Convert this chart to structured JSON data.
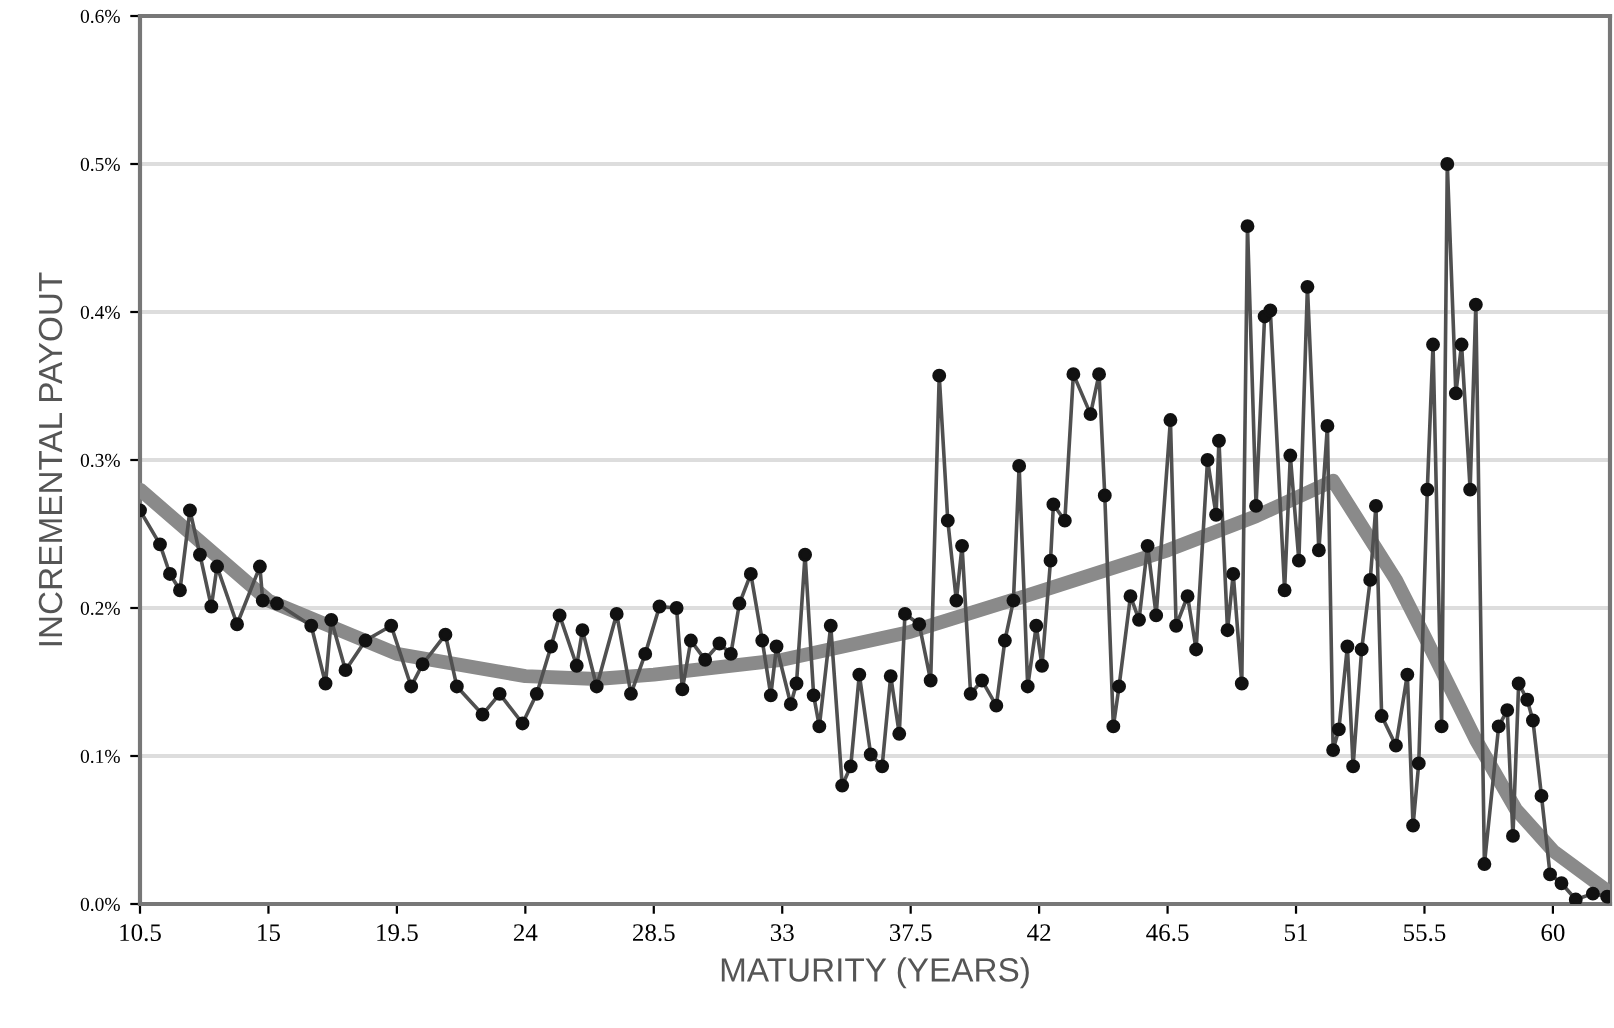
{
  "chart_data": {
    "type": "line",
    "xlabel": "MATURITY (YEARS)",
    "ylabel": "INCREMENTAL PAYOUT",
    "xlim": [
      10.5,
      62
    ],
    "xticks": [
      10.5,
      15,
      19.5,
      24,
      28.5,
      33,
      37.5,
      42,
      46.5,
      51,
      55.5,
      60
    ],
    "ylim": [
      0,
      0.6
    ],
    "yticks": [
      {
        "value": 0,
        "label": "0.0%"
      },
      {
        "value": 0.1,
        "label": "0.1%"
      },
      {
        "value": 0.2,
        "label": "0.2%"
      },
      {
        "value": 0.3,
        "label": "0.3%"
      },
      {
        "value": 0.4,
        "label": "0.4%"
      },
      {
        "value": 0.5,
        "label": "0.5%"
      },
      {
        "value": 0.6,
        "label": "0.6%"
      }
    ],
    "grid": "y",
    "legend": false,
    "series": [
      {
        "color": "#8a8a8a",
        "marker": "none",
        "x": [
          10.5,
          15,
          19.5,
          24,
          26.5,
          28.5,
          33,
          37.5,
          42,
          46.5,
          49.6,
          52.3,
          54.5,
          55.5,
          57.3,
          58.7,
          60,
          61.9
        ],
        "values": [
          0.28,
          0.205,
          0.169,
          0.154,
          0.152,
          0.155,
          0.165,
          0.184,
          0.211,
          0.239,
          0.262,
          0.286,
          0.219,
          0.181,
          0.111,
          0.064,
          0.036,
          0.009
        ]
      },
      {
        "color": "#505050",
        "marker": "circle",
        "x": [
          10.5,
          11.2,
          11.55,
          11.9,
          12.25,
          12.6,
          13.0,
          13.2,
          13.9,
          14.7,
          14.8,
          15.3,
          16.5,
          17.0,
          17.2,
          17.7,
          18.4,
          19.3,
          20.0,
          20.4,
          21.2,
          21.6,
          22.5,
          23.1,
          23.9,
          24.4,
          24.9,
          25.2,
          25.8,
          26.0,
          26.5,
          27.2,
          27.7,
          28.2,
          28.7,
          29.3,
          29.5,
          29.8,
          30.3,
          30.8,
          31.2,
          31.5,
          31.9,
          32.3,
          32.6,
          32.8,
          33.3,
          33.5,
          33.8,
          34.1,
          34.3,
          34.7,
          35.1,
          35.4,
          35.7,
          36.1,
          36.5,
          36.8,
          37.1,
          37.3,
          37.8,
          38.2,
          38.5,
          38.8,
          39.1,
          39.3,
          39.6,
          40.0,
          40.5,
          40.8,
          41.1,
          41.3,
          41.6,
          41.9,
          42.1,
          42.4,
          42.5,
          42.9,
          43.2,
          43.8,
          44.1,
          44.3,
          44.6,
          44.8,
          45.2,
          45.5,
          45.8,
          46.1,
          46.6,
          46.8,
          47.2,
          47.5,
          47.9,
          48.2,
          48.3,
          48.6,
          48.8,
          49.1,
          49.3,
          49.6,
          49.9,
          50.1,
          50.6,
          50.8,
          51.1,
          51.4,
          51.8,
          52.1,
          52.3,
          52.5,
          52.8,
          53.0,
          53.3,
          53.6,
          53.8,
          54.0,
          54.5,
          54.9,
          55.1,
          55.3,
          55.6,
          55.8,
          56.1,
          56.3,
          56.6,
          56.8,
          57.1,
          57.3,
          57.6,
          58.1,
          58.4,
          58.6,
          58.8,
          59.1,
          59.3,
          59.6,
          59.9,
          60.3,
          60.8,
          61.4,
          61.9
        ],
        "values": [
          0.266,
          0.243,
          0.223,
          0.212,
          0.266,
          0.236,
          0.201,
          0.228,
          0.189,
          0.228,
          0.205,
          0.203,
          0.188,
          0.149,
          0.192,
          0.158,
          0.178,
          0.188,
          0.147,
          0.162,
          0.182,
          0.147,
          0.128,
          0.142,
          0.122,
          0.142,
          0.174,
          0.195,
          0.161,
          0.185,
          0.147,
          0.196,
          0.142,
          0.169,
          0.201,
          0.2,
          0.145,
          0.178,
          0.165,
          0.176,
          0.169,
          0.203,
          0.223,
          0.178,
          0.141,
          0.174,
          0.135,
          0.149,
          0.236,
          0.141,
          0.12,
          0.188,
          0.08,
          0.093,
          0.155,
          0.101,
          0.093,
          0.154,
          0.115,
          0.196,
          0.189,
          0.151,
          0.357,
          0.259,
          0.205,
          0.242,
          0.142,
          0.151,
          0.134,
          0.178,
          0.205,
          0.296,
          0.147,
          0.188,
          0.161,
          0.232,
          0.27,
          0.259,
          0.358,
          0.331,
          0.358,
          0.276,
          0.12,
          0.147,
          0.208,
          0.192,
          0.242,
          0.195,
          0.327,
          0.188,
          0.208,
          0.172,
          0.3,
          0.263,
          0.313,
          0.185,
          0.223,
          0.149,
          0.458,
          0.269,
          0.397,
          0.401,
          0.212,
          0.303,
          0.232,
          0.417,
          0.239,
          0.323,
          0.104,
          0.118,
          0.174,
          0.093,
          0.172,
          0.219,
          0.269,
          0.127,
          0.107,
          0.155,
          0.053,
          0.095,
          0.28,
          0.378,
          0.12,
          0.5,
          0.345,
          0.378,
          0.28,
          0.405,
          0.027,
          0.12,
          0.131,
          0.046,
          0.149,
          0.138,
          0.124,
          0.073,
          0.02,
          0.014,
          0.003,
          0.007,
          0.005
        ]
      }
    ]
  }
}
